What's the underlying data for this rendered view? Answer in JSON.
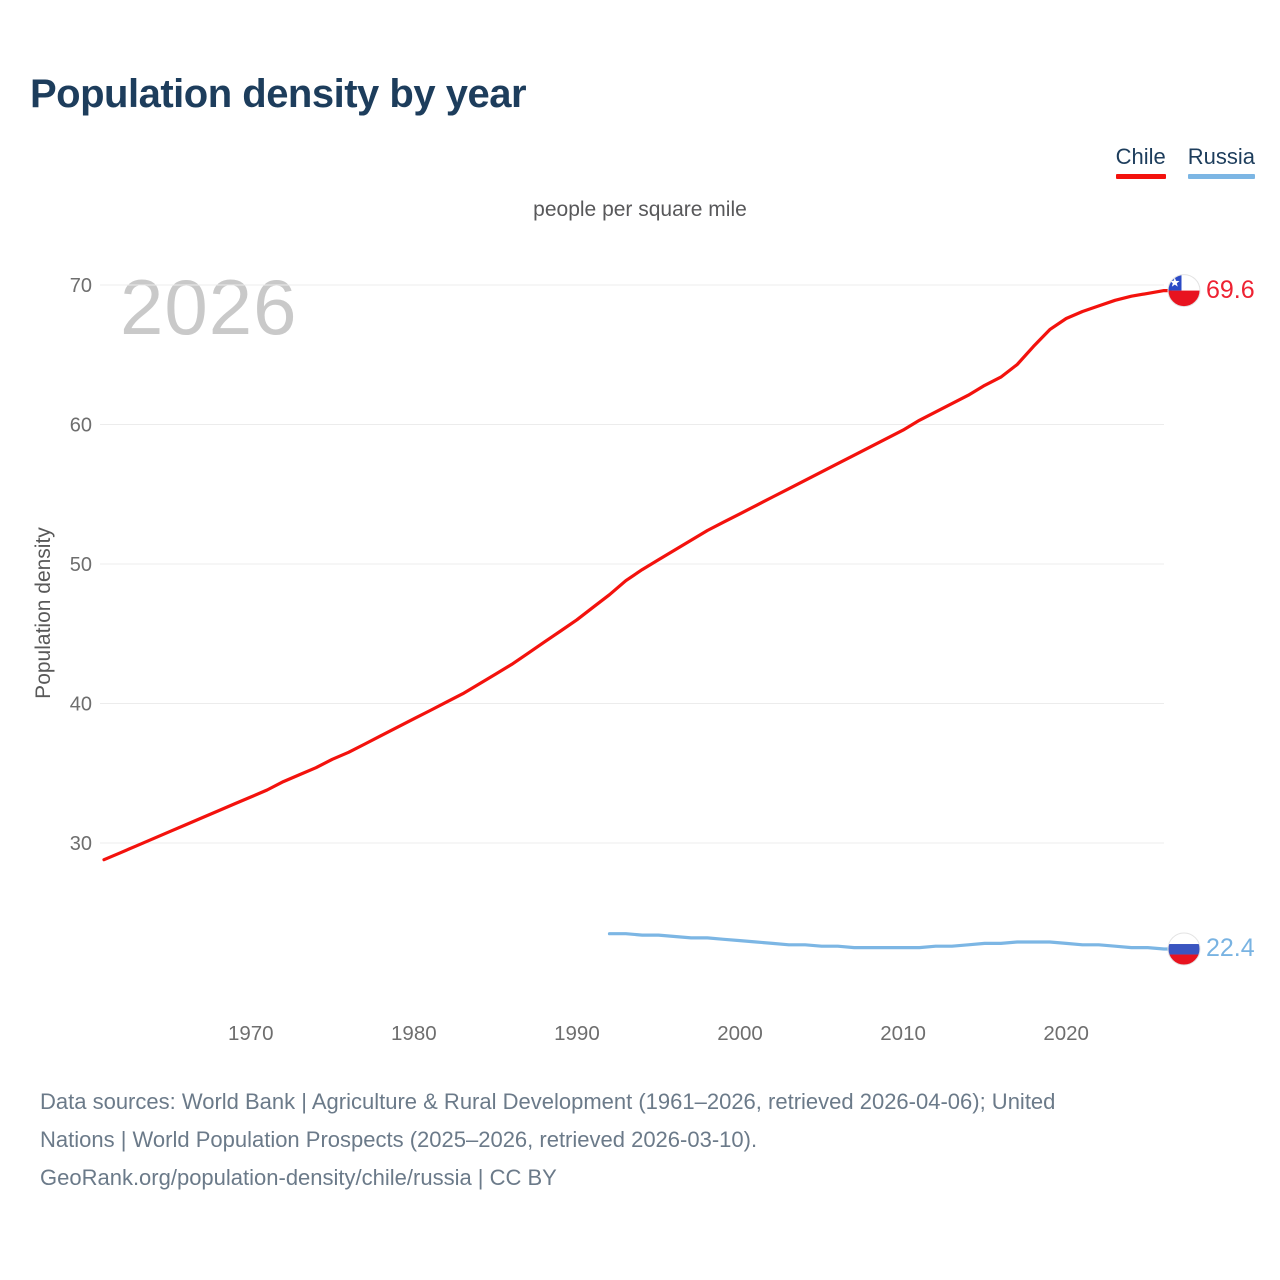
{
  "title": "Population density by year",
  "subtitle": "people per square mile",
  "watermark": "2026",
  "y_axis_label": "Population density",
  "legend": [
    {
      "label": "Chile",
      "color": "#f3120d"
    },
    {
      "label": "Russia",
      "color": "#7cb6e4"
    }
  ],
  "end_labels": {
    "chile": {
      "value": "69.6",
      "color": "#ee2232",
      "flag": "chile-flag-icon"
    },
    "russia": {
      "value": "22.4",
      "color": "#79b3e2",
      "flag": "russia-flag-icon"
    }
  },
  "icons": {
    "chile_flag": {
      "blue": "#2b4ac6",
      "white": "#ffffff",
      "red": "#e8131f"
    },
    "russia_flag": {
      "white": "#ffffff",
      "blue": "#3a55c0",
      "red": "#e8131f"
    }
  },
  "colors": {
    "title": "#1d3d5c",
    "subtitle_text": "#58585a",
    "watermark": "#c9c9c9",
    "axis_tick_text": "#6e6e6e",
    "gridline": "#ececec",
    "footer_text": "#6b7a89",
    "chile_line": "#f3120d",
    "russia_line": "#7cb6e4",
    "background": "#ffffff"
  },
  "footer": {
    "lines": [
      "Data sources: World Bank | Agriculture & Rural Development (1961–2026, retrieved 2026-04-06); United",
      "Nations | World Population Prospects (2025–2026, retrieved 2026-03-10).",
      "GeoRank.org/population-density/chile/russia | CC BY"
    ]
  },
  "chart_data": {
    "type": "line",
    "title": "Population density by year",
    "subtitle": "people per square mile",
    "xlabel": "",
    "ylabel": "Population density",
    "x_ticks": [
      1970,
      1980,
      1990,
      2000,
      2010,
      2020
    ],
    "y_ticks": [
      70,
      60,
      50,
      40,
      30
    ],
    "xlim": [
      1961,
      2026
    ],
    "ylim": [
      18,
      71
    ],
    "grid": "horizontal-only",
    "legend_position": "top-right",
    "watermark_year": "2026",
    "series": [
      {
        "name": "Chile",
        "color": "#f3120d",
        "end_label": "69.6",
        "years": [
          1961,
          1962,
          1963,
          1964,
          1965,
          1966,
          1967,
          1968,
          1969,
          1970,
          1971,
          1972,
          1973,
          1974,
          1975,
          1976,
          1977,
          1978,
          1979,
          1980,
          1981,
          1982,
          1983,
          1984,
          1985,
          1986,
          1987,
          1988,
          1989,
          1990,
          1991,
          1992,
          1993,
          1994,
          1995,
          1996,
          1997,
          1998,
          1999,
          2000,
          2001,
          2002,
          2003,
          2004,
          2005,
          2006,
          2007,
          2008,
          2009,
          2010,
          2011,
          2012,
          2013,
          2014,
          2015,
          2016,
          2017,
          2018,
          2019,
          2020,
          2021,
          2022,
          2023,
          2024,
          2025,
          2026
        ],
        "values": [
          28.8,
          29.3,
          29.8,
          30.3,
          30.8,
          31.3,
          31.8,
          32.3,
          32.8,
          33.3,
          33.8,
          34.4,
          34.9,
          35.4,
          36.0,
          36.5,
          37.1,
          37.7,
          38.3,
          38.9,
          39.5,
          40.1,
          40.7,
          41.4,
          42.1,
          42.8,
          43.6,
          44.4,
          45.2,
          46.0,
          46.9,
          47.8,
          48.8,
          49.6,
          50.3,
          51.0,
          51.7,
          52.4,
          53.0,
          53.6,
          54.2,
          54.8,
          55.4,
          56.0,
          56.6,
          57.2,
          57.8,
          58.4,
          59.0,
          59.6,
          60.3,
          60.9,
          61.5,
          62.1,
          62.8,
          63.4,
          64.3,
          65.6,
          66.8,
          67.6,
          68.1,
          68.5,
          68.9,
          69.2,
          69.4,
          69.6
        ]
      },
      {
        "name": "Russia",
        "color": "#7cb6e4",
        "end_label": "22.4",
        "years": [
          1992,
          1993,
          1994,
          1995,
          1996,
          1997,
          1998,
          1999,
          2000,
          2001,
          2002,
          2003,
          2004,
          2005,
          2006,
          2007,
          2008,
          2009,
          2010,
          2011,
          2012,
          2013,
          2014,
          2015,
          2016,
          2017,
          2018,
          2019,
          2020,
          2021,
          2022,
          2023,
          2024,
          2025,
          2026
        ],
        "values": [
          23.5,
          23.5,
          23.4,
          23.4,
          23.3,
          23.2,
          23.2,
          23.1,
          23.0,
          22.9,
          22.8,
          22.7,
          22.7,
          22.6,
          22.6,
          22.5,
          22.5,
          22.5,
          22.5,
          22.5,
          22.6,
          22.6,
          22.7,
          22.8,
          22.8,
          22.9,
          22.9,
          22.9,
          22.8,
          22.7,
          22.7,
          22.6,
          22.5,
          22.5,
          22.4
        ]
      }
    ]
  }
}
